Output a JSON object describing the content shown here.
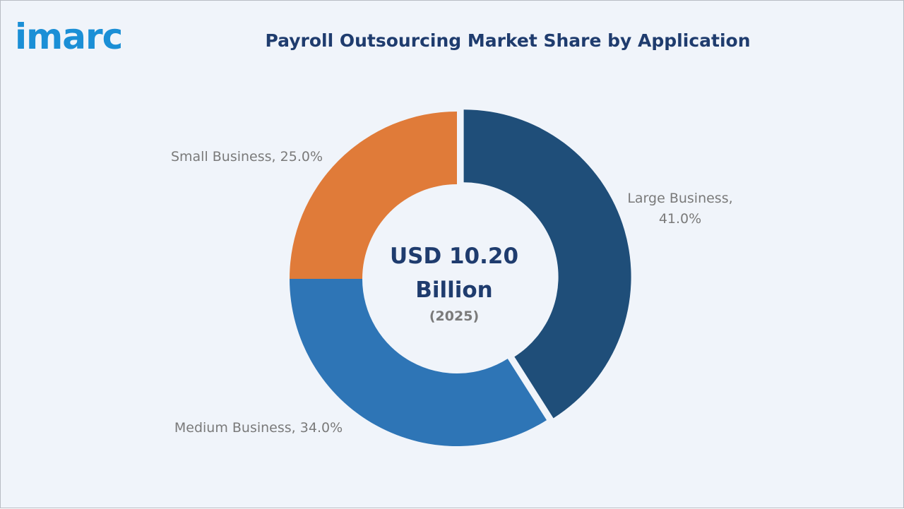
{
  "logo": "imarc",
  "chart_data": {
    "type": "donut",
    "title": "Payroll Outsourcing Market Share by Application",
    "center_text": "USD 10.20 Billion",
    "center_subtext": "(2025)",
    "categories": [
      "Large Business",
      "Medium Business",
      "Small Business"
    ],
    "values": [
      41.0,
      34.0,
      25.0
    ],
    "value_labels": [
      "41.0%",
      "34.0%",
      "25.0%"
    ],
    "colors": [
      "#1f4e79",
      "#2e75b6",
      "#e07b39"
    ],
    "exploded": [
      true,
      false,
      false
    ]
  }
}
